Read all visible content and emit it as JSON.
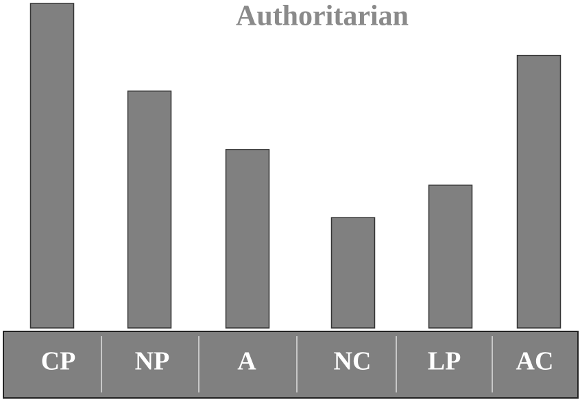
{
  "chart_data": {
    "type": "bar",
    "title": "Authoritarian",
    "categories": [
      "CP",
      "NP",
      "A",
      "NC",
      "LP",
      "AC"
    ],
    "values": [
      100,
      73,
      55,
      34,
      44,
      84
    ],
    "color": "#808080",
    "ylim": [
      0,
      100
    ]
  }
}
